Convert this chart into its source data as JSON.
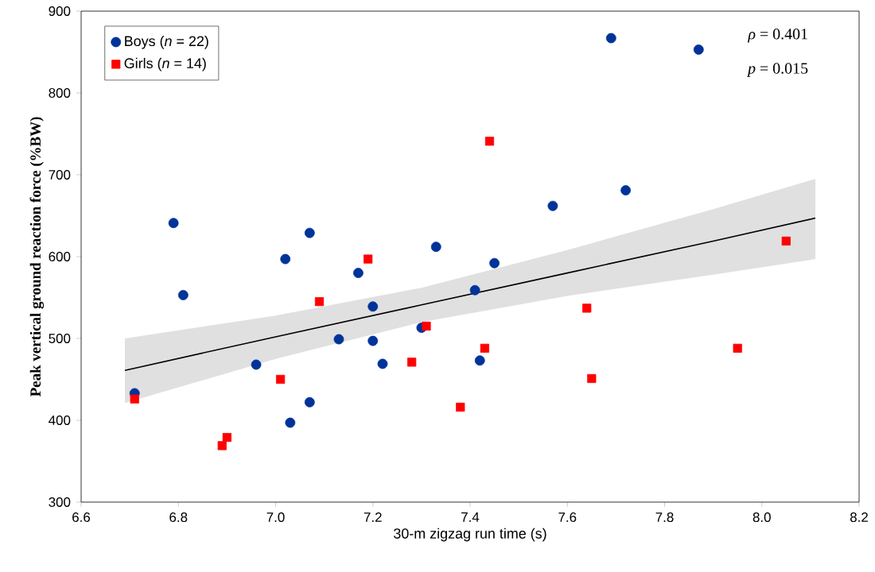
{
  "chart_data": {
    "type": "scatter",
    "xlabel": "30-m zigzag run time (s)",
    "ylabel": "Peak vertical ground reaction force (%BW)",
    "xlim": [
      6.6,
      8.2
    ],
    "ylim": [
      300,
      900
    ],
    "xticks": [
      6.6,
      6.8,
      {
        "value": 7.0,
        "label": "7.0"
      },
      7.2,
      7.4,
      7.6,
      7.8,
      {
        "value": 8.0,
        "label": "8.0"
      },
      8.2
    ],
    "yticks": [
      300,
      400,
      500,
      600,
      700,
      800,
      900
    ],
    "legend": "top left",
    "grid": false,
    "annotations": [
      "*ρ* = 0.401",
      "*p* = 0.015"
    ],
    "series": [
      {
        "name": "Boys (*n* = 22)",
        "color": "#003399",
        "marker": "circle",
        "x": [
          6.71,
          6.79,
          6.81,
          6.96,
          7.02,
          7.03,
          7.07,
          7.07,
          7.13,
          7.17,
          7.2,
          7.2,
          7.22,
          7.3,
          7.33,
          7.41,
          7.42,
          7.45,
          7.57,
          7.69,
          7.72,
          7.87
        ],
        "values": [
          433,
          641,
          553,
          468,
          597,
          397,
          629,
          422,
          499,
          580,
          497,
          539,
          469,
          513,
          612,
          559,
          473,
          592,
          662,
          867,
          681,
          853
        ]
      },
      {
        "name": "Girls (*n* = 14)",
        "color": "#ff0000",
        "marker": "square",
        "x": [
          6.71,
          6.89,
          6.9,
          7.01,
          7.09,
          7.19,
          7.28,
          7.31,
          7.38,
          7.43,
          7.44,
          7.64,
          7.65,
          7.95,
          8.05
        ],
        "values": [
          426,
          369,
          379,
          450,
          545,
          597,
          471,
          515,
          416,
          488,
          741,
          537,
          451,
          488,
          619
        ]
      },
      {
        "type": "line",
        "color": "#000000",
        "x": [
          6.69,
          7.0,
          7.3,
          7.6,
          7.9,
          8.11
        ],
        "values": [
          461,
          502,
          541,
          580,
          619,
          647
        ],
        "lower": [
          421,
          475,
          520,
          552,
          578,
          597
        ],
        "upper": [
          500,
          528,
          562,
          608,
          658,
          695
        ]
      }
    ]
  }
}
